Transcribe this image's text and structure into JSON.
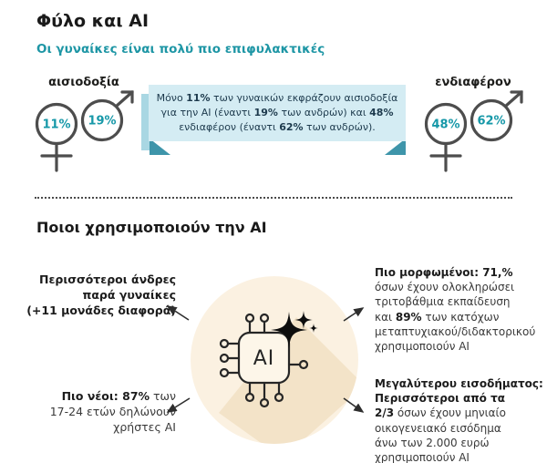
{
  "header": {
    "title": "Φύλο και AI",
    "subtitle": "Οι γυναίκες είναι πολύ πιο επιφυλακτικές"
  },
  "gender_stats": {
    "optimism": {
      "label": "αισιοδοξία",
      "female_value": "11%",
      "male_value": "19%"
    },
    "interest": {
      "label": "ενδιαφέρον",
      "female_value": "48%",
      "male_value": "62%"
    },
    "callout_lines": [
      [
        {
          "t": "Μόνο ",
          "b": false
        },
        {
          "t": "11%",
          "b": true
        },
        {
          "t": " των γυναικών εκφράζουν αισιοδοξία",
          "b": false
        }
      ],
      [
        {
          "t": "για την AI (έναντι ",
          "b": false
        },
        {
          "t": "19%",
          "b": true
        },
        {
          "t": " των ανδρών) και ",
          "b": false
        },
        {
          "t": "48%",
          "b": true
        }
      ],
      [
        {
          "t": "ενδιαφέρον (έναντι ",
          "b": false
        },
        {
          "t": "62%",
          "b": true
        },
        {
          "t": " των ανδρών).",
          "b": false
        }
      ]
    ]
  },
  "usage_section": {
    "title": "Ποιοι χρησιμοποιούν την AI",
    "chip_label": "AI",
    "blocks": {
      "more_men": {
        "lines": [
          [
            {
              "t": "Περισσότεροι άνδρες",
              "b": true
            }
          ],
          [
            {
              "t": "παρά γυναίκες",
              "b": true
            }
          ],
          [
            {
              "t": "(+11 μονάδες διαφορά)",
              "b": true
            }
          ]
        ]
      },
      "educated": {
        "lines": [
          [
            {
              "t": "Πιο μορφωμένοι: 71,%",
              "b": true
            }
          ],
          [
            {
              "t": "όσων έχουν ολοκληρώσει",
              "b": false
            }
          ],
          [
            {
              "t": "τριτοβάθμια εκπαίδευση",
              "b": false
            }
          ],
          [
            {
              "t": "και ",
              "b": false
            },
            {
              "t": "89%",
              "b": true
            },
            {
              "t": " των κατόχων",
              "b": false
            }
          ],
          [
            {
              "t": "μεταπτυχιακού/διδακτορικού",
              "b": false
            }
          ],
          [
            {
              "t": "χρησιμοποιούν AI",
              "b": false
            }
          ]
        ]
      },
      "younger": {
        "lines": [
          [
            {
              "t": "Πιο νέοι: 87%",
              "b": true
            },
            {
              "t": " των",
              "b": false
            }
          ],
          [
            {
              "t": "17-24 ετών δηλώνουν",
              "b": false
            }
          ],
          [
            {
              "t": "χρήστες AI",
              "b": false
            }
          ]
        ]
      },
      "income": {
        "lines": [
          [
            {
              "t": "Μεγαλύτερου εισοδήματος:",
              "b": true
            }
          ],
          [
            {
              "t": "Περισσότεροι από τα",
              "b": true
            }
          ],
          [
            {
              "t": "2/3",
              "b": true
            },
            {
              "t": " όσων έχουν μηνιαίο",
              "b": false
            }
          ],
          [
            {
              "t": "οικογενειακό εισόδημα",
              "b": false
            }
          ],
          [
            {
              "t": "άνω των 2.000 ευρώ",
              "b": false
            }
          ],
          [
            {
              "t": "χρησιμοποιούν AI",
              "b": false
            }
          ]
        ]
      }
    }
  },
  "chart_data": {
    "type": "table",
    "title": "Φύλο και AI",
    "categories": [
      "αισιοδοξία",
      "ενδιαφέρον"
    ],
    "series": [
      {
        "name": "γυναίκες",
        "values": [
          11,
          48
        ]
      },
      {
        "name": "άνδρες",
        "values": [
          19,
          62
        ]
      }
    ],
    "unit": "%",
    "annotations": [
      "Περισσότεροι άνδρες παρά γυναίκες (+11 μονάδες διαφορά)",
      "Πιο μορφωμένοι: 71,% τριτοβάθμια, 89% μεταπτυχιακού/διδακτορικού",
      "Πιο νέοι: 87% των 17-24 ετών",
      "Μεγαλύτερου εισοδήματος: 2/3 άνω των 2.000 ευρώ"
    ]
  },
  "colors": {
    "accent_teal": "#1e96a5",
    "percent_teal": "#1698a8",
    "callout_bg": "#d4ecf3",
    "callout_edge": "#a9d7e3",
    "callout_fold": "#3e95aa",
    "callout_text": "#1d3a4d",
    "symbol_gray": "#4d4d4d",
    "circle_cream": "#fbf1e1",
    "circle_shadow": "#f3e3c8",
    "text_dark": "#1d1d1b"
  }
}
